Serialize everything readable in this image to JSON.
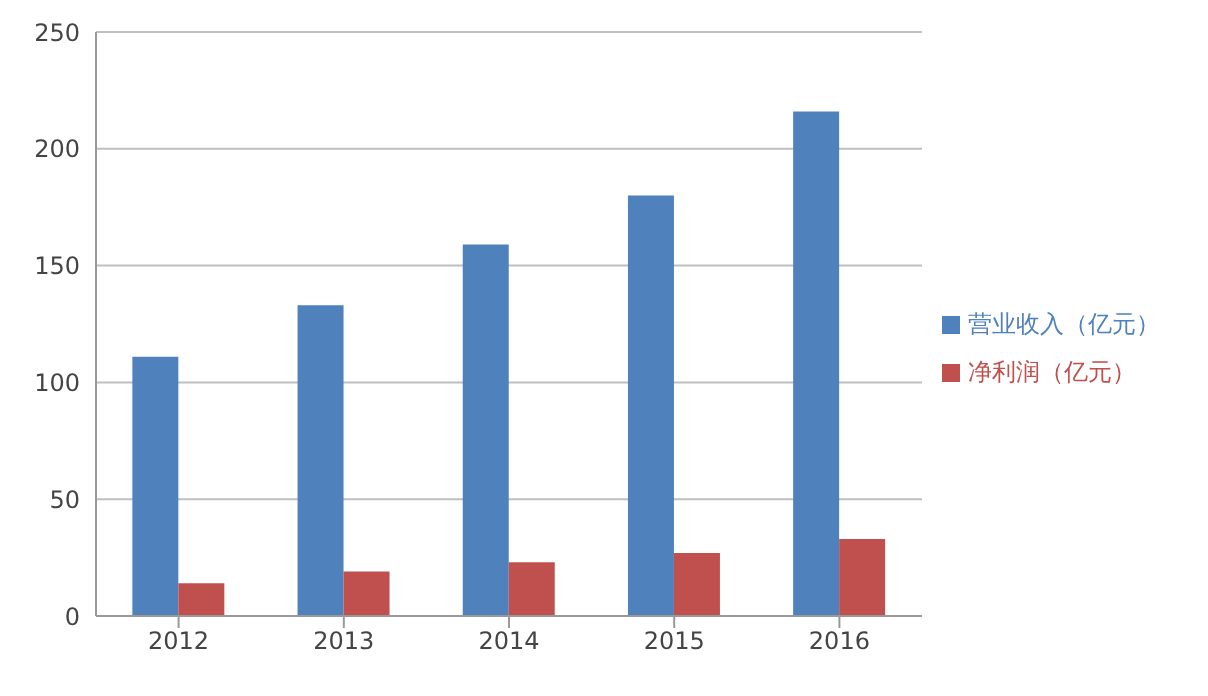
{
  "chart_data": {
    "type": "bar",
    "categories": [
      "2012",
      "2013",
      "2014",
      "2015",
      "2016"
    ],
    "series": [
      {
        "name": "营业收入（亿元）",
        "color": "#4f81bd",
        "values": [
          111,
          133,
          159,
          180,
          216
        ]
      },
      {
        "name": "净利润（亿元）",
        "color": "#c0504d",
        "values": [
          14,
          19,
          23,
          27,
          33
        ]
      }
    ],
    "ylim": [
      0,
      250
    ],
    "yticks": [
      0,
      50,
      100,
      150,
      200,
      250
    ],
    "grid": "y",
    "legend": "right"
  }
}
